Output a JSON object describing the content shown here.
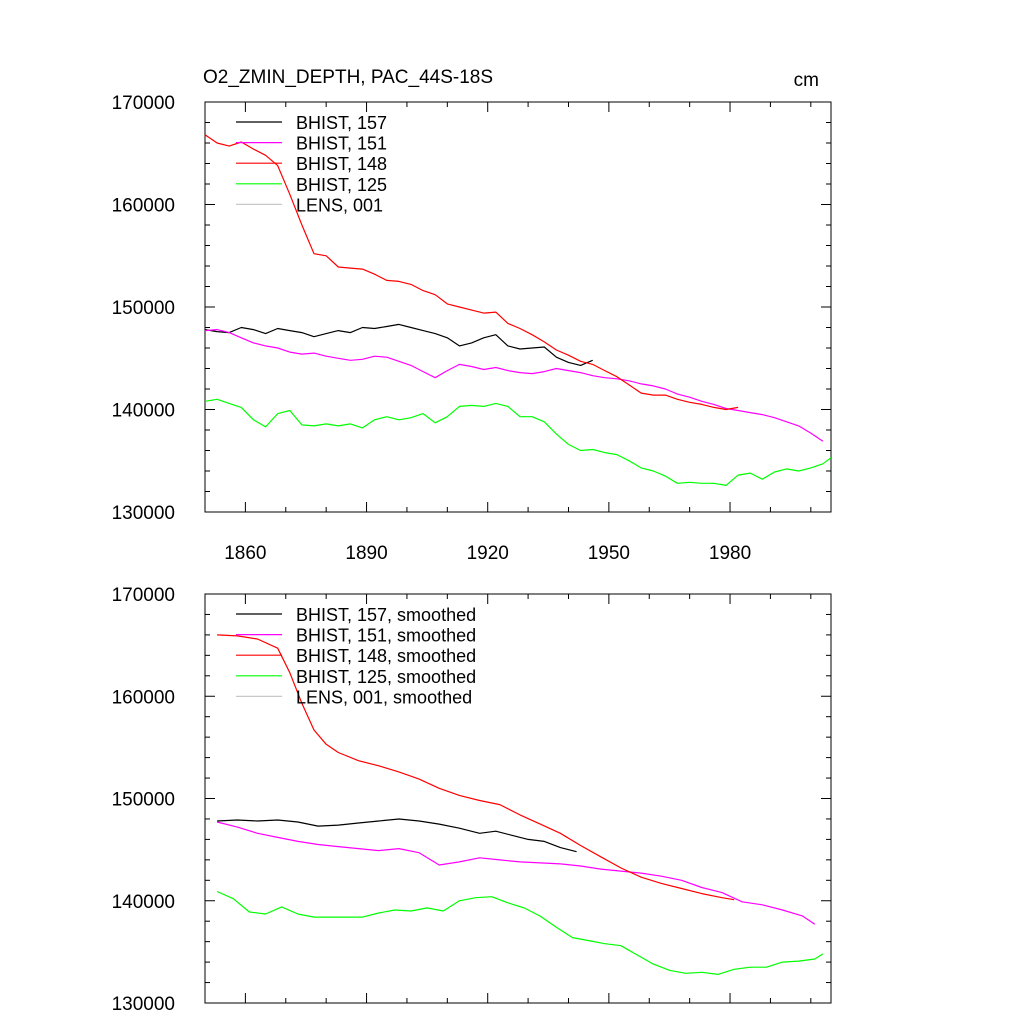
{
  "figure": {
    "title": "O2_ZMIN_DEPTH, PAC_44S-18S",
    "units": "cm"
  },
  "chart_data": [
    {
      "type": "line",
      "panel": "top",
      "title": "O2_ZMIN_DEPTH, PAC_44S-18S",
      "units": "cm",
      "xlabel": "",
      "ylabel": "",
      "xlim": [
        1850,
        2005
      ],
      "ylim": [
        130000,
        170000
      ],
      "xticks": [
        1860,
        1890,
        1920,
        1950,
        1980
      ],
      "yticks": [
        130000,
        140000,
        150000,
        160000,
        170000
      ],
      "show_x_tick_labels": true,
      "grid": false,
      "legend_position": "top-left",
      "series": [
        {
          "name": "BHIST, 157",
          "color": "#000000",
          "x": [
            1850,
            1853,
            1856,
            1859,
            1862,
            1865,
            1868,
            1871,
            1874,
            1877,
            1880,
            1883,
            1886,
            1889,
            1892,
            1895,
            1898,
            1901,
            1904,
            1907,
            1910,
            1913,
            1916,
            1919,
            1922,
            1925,
            1928,
            1931,
            1934,
            1937,
            1940,
            1943,
            1946
          ],
          "y": [
            147800,
            147600,
            147500,
            148000,
            147800,
            147400,
            147900,
            147700,
            147500,
            147100,
            147400,
            147700,
            147500,
            148000,
            147900,
            148100,
            148300,
            148000,
            147700,
            147400,
            147000,
            146200,
            146500,
            147000,
            147300,
            146200,
            145900,
            146000,
            146100,
            145100,
            144600,
            144300,
            144800
          ]
        },
        {
          "name": "BHIST, 151",
          "color": "#ff00ff",
          "x": [
            1850,
            1853,
            1856,
            1859,
            1862,
            1865,
            1868,
            1871,
            1874,
            1877,
            1880,
            1883,
            1886,
            1889,
            1892,
            1895,
            1898,
            1901,
            1904,
            1907,
            1910,
            1913,
            1916,
            1919,
            1922,
            1925,
            1928,
            1931,
            1934,
            1937,
            1940,
            1943,
            1946,
            1949,
            1952,
            1955,
            1958,
            1961,
            1964,
            1967,
            1970,
            1973,
            1976,
            1979,
            1982,
            1985,
            1988,
            1991,
            1994,
            1997,
            2000,
            2003
          ],
          "y": [
            147700,
            147800,
            147500,
            147000,
            146500,
            146200,
            146000,
            145600,
            145400,
            145500,
            145200,
            145000,
            144800,
            144900,
            145200,
            145100,
            144700,
            144300,
            143700,
            143100,
            143800,
            144400,
            144200,
            143900,
            144100,
            143800,
            143600,
            143500,
            143700,
            144000,
            143800,
            143600,
            143300,
            143100,
            143000,
            142800,
            142500,
            142300,
            142000,
            141500,
            141200,
            140800,
            140500,
            140100,
            139900,
            139700,
            139500,
            139200,
            138800,
            138400,
            137700,
            136900
          ]
        },
        {
          "name": "BHIST, 148",
          "color": "#ff0000",
          "x": [
            1850,
            1853,
            1856,
            1859,
            1862,
            1865,
            1868,
            1871,
            1874,
            1877,
            1880,
            1883,
            1886,
            1889,
            1892,
            1895,
            1898,
            1901,
            1904,
            1907,
            1910,
            1913,
            1916,
            1919,
            1922,
            1925,
            1928,
            1931,
            1934,
            1937,
            1940,
            1943,
            1946,
            1949,
            1952,
            1955,
            1958,
            1961,
            1964,
            1967,
            1970,
            1973,
            1976,
            1979,
            1982
          ],
          "y": [
            166800,
            166000,
            165700,
            166100,
            165400,
            164800,
            163800,
            161000,
            158000,
            155200,
            155000,
            153900,
            153800,
            153700,
            153200,
            152600,
            152500,
            152200,
            151600,
            151200,
            150300,
            150000,
            149700,
            149400,
            149500,
            148400,
            147900,
            147300,
            146600,
            145800,
            145300,
            144700,
            144400,
            143800,
            143200,
            142400,
            141600,
            141400,
            141400,
            141000,
            140700,
            140500,
            140200,
            140000,
            140200
          ]
        },
        {
          "name": "BHIST, 125",
          "color": "#00ff00",
          "x": [
            1850,
            1853,
            1856,
            1859,
            1862,
            1865,
            1868,
            1871,
            1874,
            1877,
            1880,
            1883,
            1886,
            1889,
            1892,
            1895,
            1898,
            1901,
            1904,
            1907,
            1910,
            1913,
            1916,
            1919,
            1922,
            1925,
            1928,
            1931,
            1934,
            1937,
            1940,
            1943,
            1946,
            1949,
            1952,
            1955,
            1958,
            1961,
            1964,
            1967,
            1970,
            1973,
            1976,
            1979,
            1982,
            1985,
            1988,
            1991,
            1994,
            1997,
            2000,
            2003,
            2005
          ],
          "y": [
            140800,
            141000,
            140600,
            140200,
            139000,
            138300,
            139600,
            139900,
            138500,
            138400,
            138600,
            138400,
            138600,
            138200,
            139000,
            139300,
            139000,
            139200,
            139600,
            138700,
            139300,
            140300,
            140400,
            140300,
            140600,
            140300,
            139300,
            139300,
            138800,
            137600,
            136600,
            136000,
            136100,
            135800,
            135600,
            135000,
            134300,
            134000,
            133500,
            132800,
            132900,
            132800,
            132800,
            132600,
            133600,
            133800,
            133200,
            133900,
            134200,
            134000,
            134300,
            134700,
            135300
          ]
        },
        {
          "name": "LENS, 001",
          "color": "#c8c8c8",
          "x": [],
          "y": []
        }
      ]
    },
    {
      "type": "line",
      "panel": "bottom",
      "title": "",
      "xlabel": "",
      "ylabel": "",
      "xlim": [
        1850,
        2005
      ],
      "ylim": [
        130000,
        170000
      ],
      "xticks": [
        1860,
        1890,
        1920,
        1950,
        1980
      ],
      "yticks": [
        130000,
        140000,
        150000,
        160000,
        170000
      ],
      "show_x_tick_labels": false,
      "grid": false,
      "legend_position": "top-left",
      "series": [
        {
          "name": "BHIST, 157, smoothed",
          "color": "#000000",
          "x": [
            1853,
            1858,
            1863,
            1868,
            1873,
            1878,
            1883,
            1888,
            1893,
            1898,
            1903,
            1908,
            1913,
            1918,
            1922,
            1926,
            1930,
            1934,
            1938,
            1942
          ],
          "y": [
            147800,
            147900,
            147800,
            147900,
            147700,
            147300,
            147400,
            147600,
            147800,
            148000,
            147800,
            147500,
            147100,
            146600,
            146800,
            146400,
            146000,
            145800,
            145200,
            144800
          ]
        },
        {
          "name": "BHIST, 151, smoothed",
          "color": "#ff00ff",
          "x": [
            1853,
            1858,
            1863,
            1868,
            1873,
            1878,
            1883,
            1888,
            1893,
            1898,
            1903,
            1908,
            1913,
            1918,
            1923,
            1928,
            1933,
            1938,
            1943,
            1948,
            1953,
            1958,
            1963,
            1968,
            1973,
            1978,
            1983,
            1988,
            1993,
            1998,
            2001
          ],
          "y": [
            147700,
            147200,
            146600,
            146200,
            145800,
            145500,
            145300,
            145100,
            144900,
            145100,
            144700,
            143500,
            143800,
            144200,
            144000,
            143800,
            143700,
            143600,
            143400,
            143100,
            142900,
            142700,
            142400,
            142000,
            141300,
            140800,
            139900,
            139600,
            139100,
            138500,
            137700
          ]
        },
        {
          "name": "BHIST, 148, smoothed",
          "color": "#ff0000",
          "x": [
            1853,
            1858,
            1863,
            1868,
            1871,
            1874,
            1877,
            1880,
            1883,
            1888,
            1893,
            1898,
            1903,
            1908,
            1913,
            1918,
            1923,
            1928,
            1933,
            1938,
            1943,
            1948,
            1953,
            1958,
            1963,
            1968,
            1973,
            1978,
            1981
          ],
          "y": [
            166000,
            165900,
            165600,
            164700,
            162300,
            159300,
            156700,
            155300,
            154500,
            153700,
            153200,
            152600,
            151900,
            151000,
            150300,
            149800,
            149400,
            148400,
            147500,
            146600,
            145400,
            144300,
            143200,
            142300,
            141700,
            141200,
            140700,
            140300,
            140100
          ]
        },
        {
          "name": "BHIST, 125, smoothed",
          "color": "#00ff00",
          "x": [
            1853,
            1857,
            1861,
            1865,
            1869,
            1873,
            1877,
            1881,
            1885,
            1889,
            1893,
            1897,
            1901,
            1905,
            1909,
            1913,
            1917,
            1921,
            1925,
            1929,
            1933,
            1937,
            1941,
            1945,
            1949,
            1953,
            1957,
            1961,
            1965,
            1969,
            1973,
            1977,
            1981,
            1985,
            1989,
            1993,
            1997,
            2001,
            2003
          ],
          "y": [
            140900,
            140200,
            138900,
            138700,
            139400,
            138700,
            138400,
            138400,
            138400,
            138400,
            138800,
            139100,
            139000,
            139300,
            139000,
            140000,
            140300,
            140400,
            139800,
            139300,
            138500,
            137400,
            136400,
            136100,
            135800,
            135600,
            134700,
            133800,
            133200,
            132900,
            133000,
            132800,
            133300,
            133500,
            133500,
            134000,
            134100,
            134300,
            134800
          ]
        },
        {
          "name": "LENS, 001, smoothed",
          "color": "#c8c8c8",
          "x": [],
          "y": []
        }
      ]
    }
  ]
}
